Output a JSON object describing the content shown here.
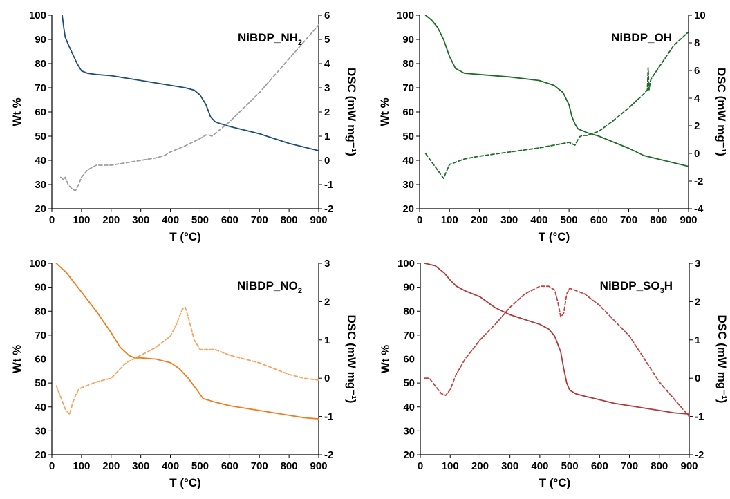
{
  "chart_data": [
    {
      "type": "line",
      "title": "NiBDP_NH₂",
      "title_base": "NiBDP_NH",
      "title_sub": "2",
      "title_tail": "",
      "xlabel": "T (°C)",
      "ylabel": "Wt %",
      "y2label": "DSC (mW mg⁻¹)",
      "xlim": [
        0,
        900
      ],
      "ylim": [
        20,
        100
      ],
      "y2lim": [
        -2,
        6
      ],
      "xticks": [
        0,
        100,
        200,
        300,
        400,
        500,
        600,
        700,
        800,
        900
      ],
      "yticks": [
        20,
        30,
        40,
        50,
        60,
        70,
        80,
        90,
        100
      ],
      "y2ticks": [
        -2,
        -1,
        0,
        1,
        2,
        3,
        4,
        5,
        6
      ],
      "grid": false,
      "series": [
        {
          "axis": "left",
          "style": "solid",
          "color": "#1f4e79",
          "x": [
            35,
            40,
            45,
            55,
            70,
            85,
            100,
            120,
            150,
            200,
            250,
            300,
            350,
            400,
            450,
            480,
            500,
            520,
            535,
            550,
            560,
            600,
            650,
            700,
            750,
            800,
            850,
            900
          ],
          "y": [
            100,
            95,
            91,
            88,
            84,
            80,
            77,
            76,
            75.5,
            75,
            74,
            73,
            72,
            71,
            70,
            69,
            67,
            63,
            58,
            56,
            55.5,
            54,
            52.5,
            51,
            49,
            47,
            45.5,
            44
          ]
        },
        {
          "axis": "right",
          "style": "dashed",
          "color": "#9e9e9e",
          "x": [
            30,
            40,
            45,
            55,
            70,
            80,
            90,
            100,
            120,
            150,
            200,
            250,
            300,
            350,
            380,
            400,
            450,
            500,
            520,
            530,
            540,
            560,
            600,
            650,
            700,
            750,
            800,
            850,
            900
          ],
          "y": [
            -0.7,
            -0.8,
            -0.7,
            -1.0,
            -1.2,
            -1.25,
            -1.0,
            -0.7,
            -0.4,
            -0.2,
            -0.2,
            -0.1,
            0.0,
            0.1,
            0.2,
            0.35,
            0.6,
            0.9,
            1.05,
            1.05,
            1.0,
            1.2,
            1.6,
            2.2,
            2.8,
            3.5,
            4.2,
            4.9,
            5.6
          ]
        }
      ]
    },
    {
      "type": "line",
      "title": "NiBDP_OH",
      "title_base": "NiBDP_OH",
      "title_sub": "",
      "title_tail": "",
      "xlabel": "T (°C)",
      "ylabel": "Wt %",
      "y2label": "DSC (mW mg⁻¹)",
      "xlim": [
        0,
        900
      ],
      "ylim": [
        20,
        100
      ],
      "y2lim": [
        -4,
        10
      ],
      "xticks": [
        0,
        100,
        200,
        300,
        400,
        500,
        600,
        700,
        800,
        900
      ],
      "yticks": [
        20,
        30,
        40,
        50,
        60,
        70,
        80,
        90,
        100
      ],
      "y2ticks": [
        -4,
        -2,
        0,
        2,
        4,
        6,
        8,
        10
      ],
      "grid": false,
      "series": [
        {
          "axis": "left",
          "style": "solid",
          "color": "#1e6b2a",
          "x": [
            20,
            40,
            60,
            80,
            100,
            120,
            150,
            200,
            300,
            400,
            450,
            480,
            500,
            510,
            520,
            530,
            540,
            560,
            600,
            650,
            700,
            750,
            800,
            850,
            900
          ],
          "y": [
            100,
            98,
            95,
            90,
            83,
            78,
            76,
            75.5,
            74.5,
            73,
            71,
            68,
            63,
            58,
            55,
            53,
            52.5,
            51.5,
            50,
            47.5,
            45,
            42,
            40.5,
            39,
            37.5
          ]
        },
        {
          "axis": "right",
          "style": "dashed",
          "color": "#1e6b2a",
          "x": [
            20,
            40,
            60,
            80,
            100,
            150,
            200,
            300,
            400,
            500,
            520,
            535,
            545,
            560,
            600,
            650,
            700,
            750,
            762,
            765,
            768,
            772,
            775,
            800,
            850,
            880,
            900
          ],
          "y": [
            0,
            -0.6,
            -1.2,
            -1.8,
            -0.8,
            -0.4,
            -0.2,
            0.1,
            0.4,
            0.8,
            0.6,
            1.2,
            1.3,
            1.3,
            1.6,
            2.4,
            3.3,
            4.3,
            4.6,
            6.2,
            4.6,
            5.2,
            5.4,
            6.2,
            7.8,
            8.4,
            8.8
          ]
        }
      ]
    },
    {
      "type": "line",
      "title": "NiBDP_NO₂",
      "title_base": "NiBDP_NO",
      "title_sub": "2",
      "title_tail": "",
      "xlabel": "T (°C)",
      "ylabel": "Wt %",
      "y2label": "DSC (mW mg⁻¹)",
      "xlim": [
        0,
        900
      ],
      "ylim": [
        20,
        100
      ],
      "y2lim": [
        -2,
        3
      ],
      "xticks": [
        0,
        100,
        200,
        300,
        400,
        500,
        600,
        700,
        800,
        900
      ],
      "yticks": [
        20,
        30,
        40,
        50,
        60,
        70,
        80,
        90,
        100
      ],
      "y2ticks": [
        -2,
        -1,
        0,
        1,
        2,
        3
      ],
      "grid": false,
      "series": [
        {
          "axis": "left",
          "style": "solid",
          "color": "#f07c1c",
          "x": [
            15,
            50,
            100,
            150,
            200,
            230,
            260,
            280,
            300,
            350,
            400,
            430,
            460,
            490,
            510,
            550,
            600,
            650,
            700,
            750,
            800,
            850,
            900
          ],
          "y": [
            100,
            96,
            88,
            80,
            71,
            65,
            61.5,
            60.5,
            60.5,
            60,
            58.5,
            56,
            52,
            47,
            43.5,
            42,
            40.5,
            39.5,
            38.5,
            37.5,
            36.5,
            35.5,
            35
          ]
        },
        {
          "axis": "right",
          "style": "dashed",
          "color": "#f7a35c",
          "x": [
            15,
            30,
            45,
            60,
            70,
            80,
            90,
            100,
            150,
            200,
            250,
            300,
            350,
            400,
            420,
            440,
            450,
            460,
            480,
            500,
            550,
            600,
            650,
            700,
            750,
            800,
            850,
            900
          ],
          "y": [
            -0.2,
            -0.5,
            -0.8,
            -0.95,
            -0.65,
            -0.45,
            -0.3,
            -0.25,
            -0.1,
            0.0,
            0.4,
            0.6,
            0.8,
            1.1,
            1.4,
            1.8,
            1.85,
            1.6,
            1.0,
            0.75,
            0.75,
            0.6,
            0.5,
            0.4,
            0.25,
            0.1,
            0.0,
            -0.05
          ]
        }
      ]
    },
    {
      "type": "line",
      "title": "NiBDP_SO₃H",
      "title_base": "NiBDP_SO",
      "title_sub": "3",
      "title_tail": "H",
      "xlabel": "T (°C)",
      "ylabel": "Wt %",
      "y2label": "DSC (mW mg⁻¹)",
      "xlim": [
        0,
        900
      ],
      "ylim": [
        20,
        100
      ],
      "y2lim": [
        -2,
        3
      ],
      "xticks": [
        0,
        100,
        200,
        300,
        400,
        500,
        600,
        700,
        800,
        900
      ],
      "yticks": [
        20,
        30,
        40,
        50,
        60,
        70,
        80,
        90,
        100
      ],
      "y2ticks": [
        -2,
        -1,
        0,
        1,
        2,
        3
      ],
      "grid": false,
      "series": [
        {
          "axis": "left",
          "style": "solid",
          "color": "#b03a3a",
          "x": [
            15,
            50,
            80,
            100,
            120,
            150,
            200,
            250,
            300,
            350,
            400,
            430,
            450,
            470,
            480,
            490,
            500,
            520,
            550,
            600,
            650,
            700,
            750,
            800,
            850,
            900
          ],
          "y": [
            100,
            99,
            96,
            93,
            90.5,
            88.5,
            86,
            81.5,
            78.5,
            76.5,
            74.5,
            72.5,
            69.5,
            63,
            56,
            50,
            47,
            45.5,
            44.5,
            43,
            41.5,
            40.5,
            39.5,
            38.5,
            37.5,
            37
          ]
        },
        {
          "axis": "right",
          "style": "dashed",
          "color": "#c04545",
          "x": [
            15,
            30,
            50,
            70,
            85,
            100,
            120,
            150,
            200,
            250,
            300,
            350,
            400,
            430,
            450,
            460,
            470,
            480,
            490,
            500,
            550,
            600,
            650,
            700,
            750,
            800,
            850,
            900
          ],
          "y": [
            0.0,
            0.0,
            -0.2,
            -0.4,
            -0.45,
            -0.3,
            0.1,
            0.5,
            1.0,
            1.4,
            1.85,
            2.2,
            2.4,
            2.4,
            2.3,
            2.0,
            1.6,
            1.7,
            2.2,
            2.35,
            2.2,
            1.9,
            1.5,
            1.1,
            0.5,
            -0.1,
            -0.55,
            -1.0
          ]
        }
      ]
    }
  ]
}
